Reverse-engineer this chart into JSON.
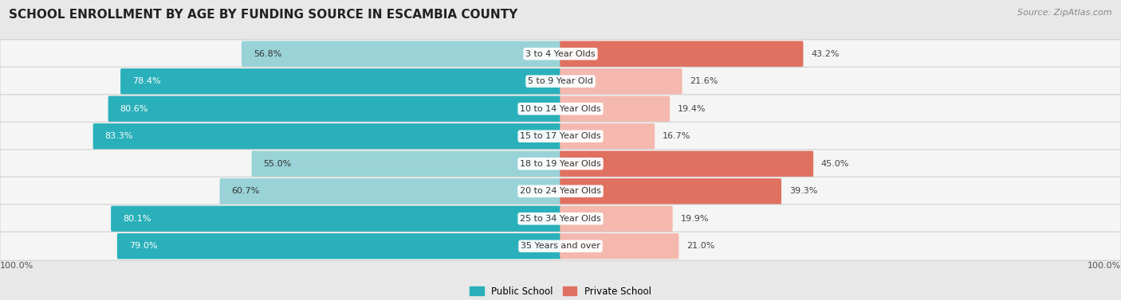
{
  "title": "SCHOOL ENROLLMENT BY AGE BY FUNDING SOURCE IN ESCAMBIA COUNTY",
  "source": "Source: ZipAtlas.com",
  "categories": [
    "3 to 4 Year Olds",
    "5 to 9 Year Old",
    "10 to 14 Year Olds",
    "15 to 17 Year Olds",
    "18 to 19 Year Olds",
    "20 to 24 Year Olds",
    "25 to 34 Year Olds",
    "35 Years and over"
  ],
  "public_values": [
    56.8,
    78.4,
    80.6,
    83.3,
    55.0,
    60.7,
    80.1,
    79.0
  ],
  "private_values": [
    43.2,
    21.6,
    19.4,
    16.7,
    45.0,
    39.3,
    19.9,
    21.0
  ],
  "public_color_light": "#99d3d8",
  "public_color_dark": "#2ab0ba",
  "private_color_light": "#f4b8ae",
  "private_color_dark": "#e07060",
  "pub_dark_threshold": 65.0,
  "priv_dark_threshold": 38.0,
  "bg_color": "#e8e8e8",
  "row_bg": "#f5f5f5",
  "row_border": "#d0d0d0",
  "axis_label": "100.0%",
  "legend_public": "Public School",
  "legend_private": "Private School",
  "title_fontsize": 11,
  "source_fontsize": 8,
  "bar_label_fontsize": 8,
  "cat_label_fontsize": 8,
  "axis_tick_fontsize": 8
}
